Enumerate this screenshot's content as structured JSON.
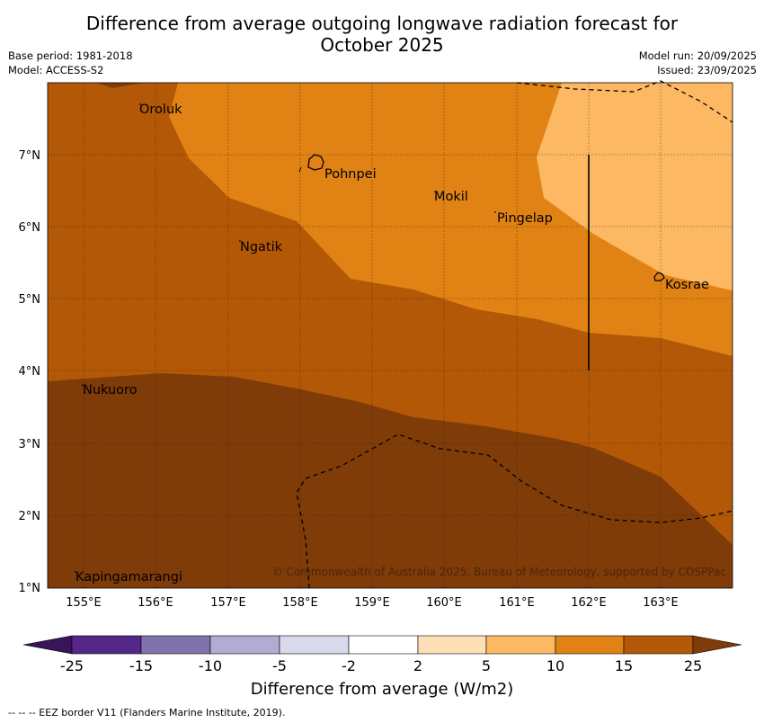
{
  "title": {
    "line1": "Difference from average outgoing longwave radiation forecast for",
    "line2": "October 2025"
  },
  "meta": {
    "base_period": "Base period: 1981-2018",
    "model": "Model: ACCESS-S2",
    "model_run": "Model run: 20/09/2025",
    "issued": "Issued: 23/09/2025"
  },
  "map": {
    "lon_labels": [
      "155°E",
      "156°E",
      "157°E",
      "158°E",
      "159°E",
      "160°E",
      "161°E",
      "162°E",
      "163°E"
    ],
    "lat_labels": [
      "7°N",
      "6°N",
      "5°N",
      "4°N",
      "3°N",
      "2°N",
      "1°N"
    ],
    "places": {
      "oroluk": "Oroluk",
      "pohnpei": "Pohnpei",
      "mokil": "Mokil",
      "pingelap": "Pingelap",
      "ngatik": "Ngatik",
      "kosrae": "Kosrae",
      "nukuoro": "Nukuoro",
      "kapingamarangi": "Kapingamarangi"
    },
    "copyright": "© Commonwealth of Australia 2025, Bureau of Meteorology, supported by COSPPac"
  },
  "colorbar": {
    "title": "Difference from average (W/m2)",
    "ticks": [
      "-25",
      "-15",
      "-10",
      "-5",
      "-2",
      "2",
      "5",
      "10",
      "15",
      "25"
    ],
    "colors": {
      "lt_-25": "#3a1458",
      "c1": "#542788",
      "c2": "#8073ac",
      "c3": "#b2abd2",
      "c4": "#d8daeb",
      "c5": "#ffffff",
      "c6": "#fee0b6",
      "c7": "#fdb863",
      "c8": "#e08214",
      "c9": "#b35806",
      "gt_25": "#7f3b08"
    }
  },
  "footer": {
    "legend": "--  --  -- EEZ border V11 (Flanders Marine Institute, 2019)."
  }
}
